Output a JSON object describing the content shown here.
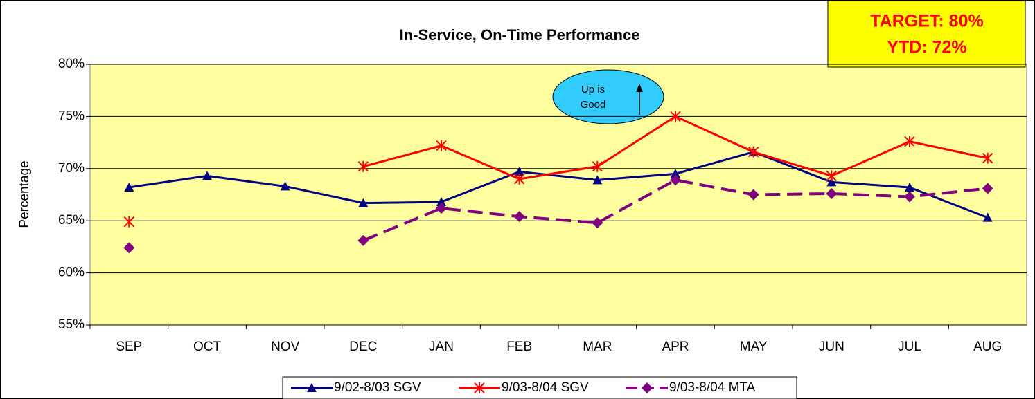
{
  "chart_data": {
    "type": "line",
    "title": "In-Service, On-Time Performance",
    "y_label": "Percentage",
    "target_box": [
      "TARGET: 80%",
      "YTD: 72%"
    ],
    "annotation": [
      "Up is",
      "Good"
    ],
    "categories": [
      "SEP",
      "OCT",
      "NOV",
      "DEC",
      "JAN",
      "FEB",
      "MAR",
      "APR",
      "MAY",
      "JUN",
      "JUL",
      "AUG"
    ],
    "series": [
      {
        "name": "9/02-8/03 SGV",
        "color": "#000080",
        "marker": "triangle",
        "dash": false,
        "values": [
          68.2,
          69.3,
          68.3,
          66.7,
          66.8,
          69.7,
          68.9,
          69.5,
          71.6,
          68.7,
          68.2,
          65.3
        ]
      },
      {
        "name": "9/03-8/04 SGV",
        "color": "#ff0000",
        "marker": "asterisk",
        "dash": false,
        "values": [
          64.9,
          null,
          null,
          70.2,
          72.2,
          69.0,
          70.2,
          75.0,
          71.6,
          69.3,
          72.6,
          71.0
        ]
      },
      {
        "name": "9/03-8/04 MTA",
        "color": "#800080",
        "marker": "diamond",
        "dash": true,
        "values": [
          62.4,
          null,
          null,
          63.1,
          66.2,
          65.4,
          64.8,
          68.9,
          67.5,
          67.6,
          67.3,
          68.1
        ]
      }
    ],
    "ylim": [
      55,
      80
    ],
    "yticks": [
      {
        "value": 55,
        "label": "55%"
      },
      {
        "value": 60,
        "label": "60%"
      },
      {
        "value": 65,
        "label": "65%"
      },
      {
        "value": 70,
        "label": "70%"
      },
      {
        "value": 75,
        "label": "75%"
      },
      {
        "value": 80,
        "label": "80%"
      }
    ],
    "grid": true,
    "legend": "bottom"
  }
}
